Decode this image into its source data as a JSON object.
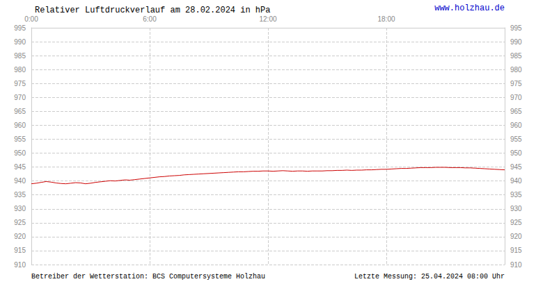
{
  "chart_data": {
    "type": "line",
    "title": "Relativer Luftdruckverlauf am 28.02.2024 in hPa",
    "annotations": [
      {
        "text": "www.holzhau.de",
        "color": "#0000cc"
      },
      {
        "text": "Betreiber der Wetterstation: BCS Computersysteme Holzhau"
      },
      {
        "text": "Letzte Messung: 25.04.2024 08:00 Uhr"
      }
    ],
    "color": "#cc0000",
    "grid": true,
    "xlim": [
      0,
      24
    ],
    "xticks": [
      {
        "value": 0,
        "label": "0:00"
      },
      {
        "value": 6,
        "label": "6:00"
      },
      {
        "value": 12,
        "label": "12:00"
      },
      {
        "value": 18,
        "label": "18:00"
      }
    ],
    "ylim": [
      910,
      995
    ],
    "yticks": [
      910,
      915,
      920,
      925,
      930,
      935,
      940,
      945,
      950,
      955,
      960,
      965,
      970,
      975,
      980,
      985,
      990,
      995
    ],
    "x": [
      0.0,
      0.25,
      0.5,
      0.75,
      1.0,
      1.25,
      1.5,
      1.75,
      2.0,
      2.25,
      2.5,
      2.75,
      3.0,
      3.25,
      3.5,
      3.75,
      4.0,
      4.25,
      4.5,
      4.75,
      5.0,
      5.25,
      5.5,
      5.75,
      6.0,
      6.25,
      6.5,
      6.75,
      7.0,
      7.25,
      7.5,
      7.75,
      8.0,
      8.25,
      8.5,
      8.75,
      9.0,
      9.25,
      9.5,
      9.75,
      10.0,
      10.25,
      10.5,
      10.75,
      11.0,
      11.25,
      11.5,
      11.75,
      12.0,
      12.25,
      12.5,
      12.75,
      13.0,
      13.25,
      13.5,
      13.75,
      14.0,
      14.25,
      14.5,
      14.75,
      15.0,
      15.25,
      15.5,
      15.75,
      16.0,
      16.25,
      16.5,
      16.75,
      17.0,
      17.25,
      17.5,
      17.75,
      18.0,
      18.25,
      18.5,
      18.75,
      19.0,
      19.25,
      19.5,
      19.75,
      20.0,
      20.25,
      20.5,
      20.75,
      21.0,
      21.25,
      21.5,
      21.75,
      22.0,
      22.25,
      22.5,
      22.75,
      23.0,
      23.25,
      23.5,
      23.75,
      24.0
    ],
    "values": [
      939.0,
      939.2,
      939.5,
      939.8,
      939.6,
      939.3,
      939.1,
      939.0,
      939.2,
      939.4,
      939.3,
      939.0,
      939.2,
      939.5,
      939.7,
      939.9,
      940.1,
      940.0,
      940.2,
      940.4,
      940.3,
      940.5,
      940.7,
      940.9,
      941.1,
      941.3,
      941.5,
      941.6,
      941.8,
      941.9,
      942.0,
      942.2,
      942.3,
      942.4,
      942.5,
      942.6,
      942.7,
      942.8,
      942.9,
      943.0,
      943.1,
      943.2,
      943.3,
      943.3,
      943.4,
      943.5,
      943.5,
      943.6,
      943.6,
      943.5,
      943.6,
      943.7,
      943.6,
      943.5,
      943.6,
      943.6,
      943.5,
      943.6,
      943.6,
      943.6,
      943.7,
      943.7,
      943.8,
      943.8,
      943.9,
      943.8,
      943.9,
      943.9,
      944.0,
      944.0,
      944.1,
      944.2,
      944.2,
      944.3,
      944.4,
      944.5,
      944.5,
      944.6,
      944.7,
      944.8,
      944.8,
      944.8,
      944.9,
      944.9,
      944.9,
      944.8,
      944.8,
      944.8,
      944.7,
      944.7,
      944.6,
      944.5,
      944.4,
      944.3,
      944.2,
      944.1,
      944.0
    ]
  }
}
